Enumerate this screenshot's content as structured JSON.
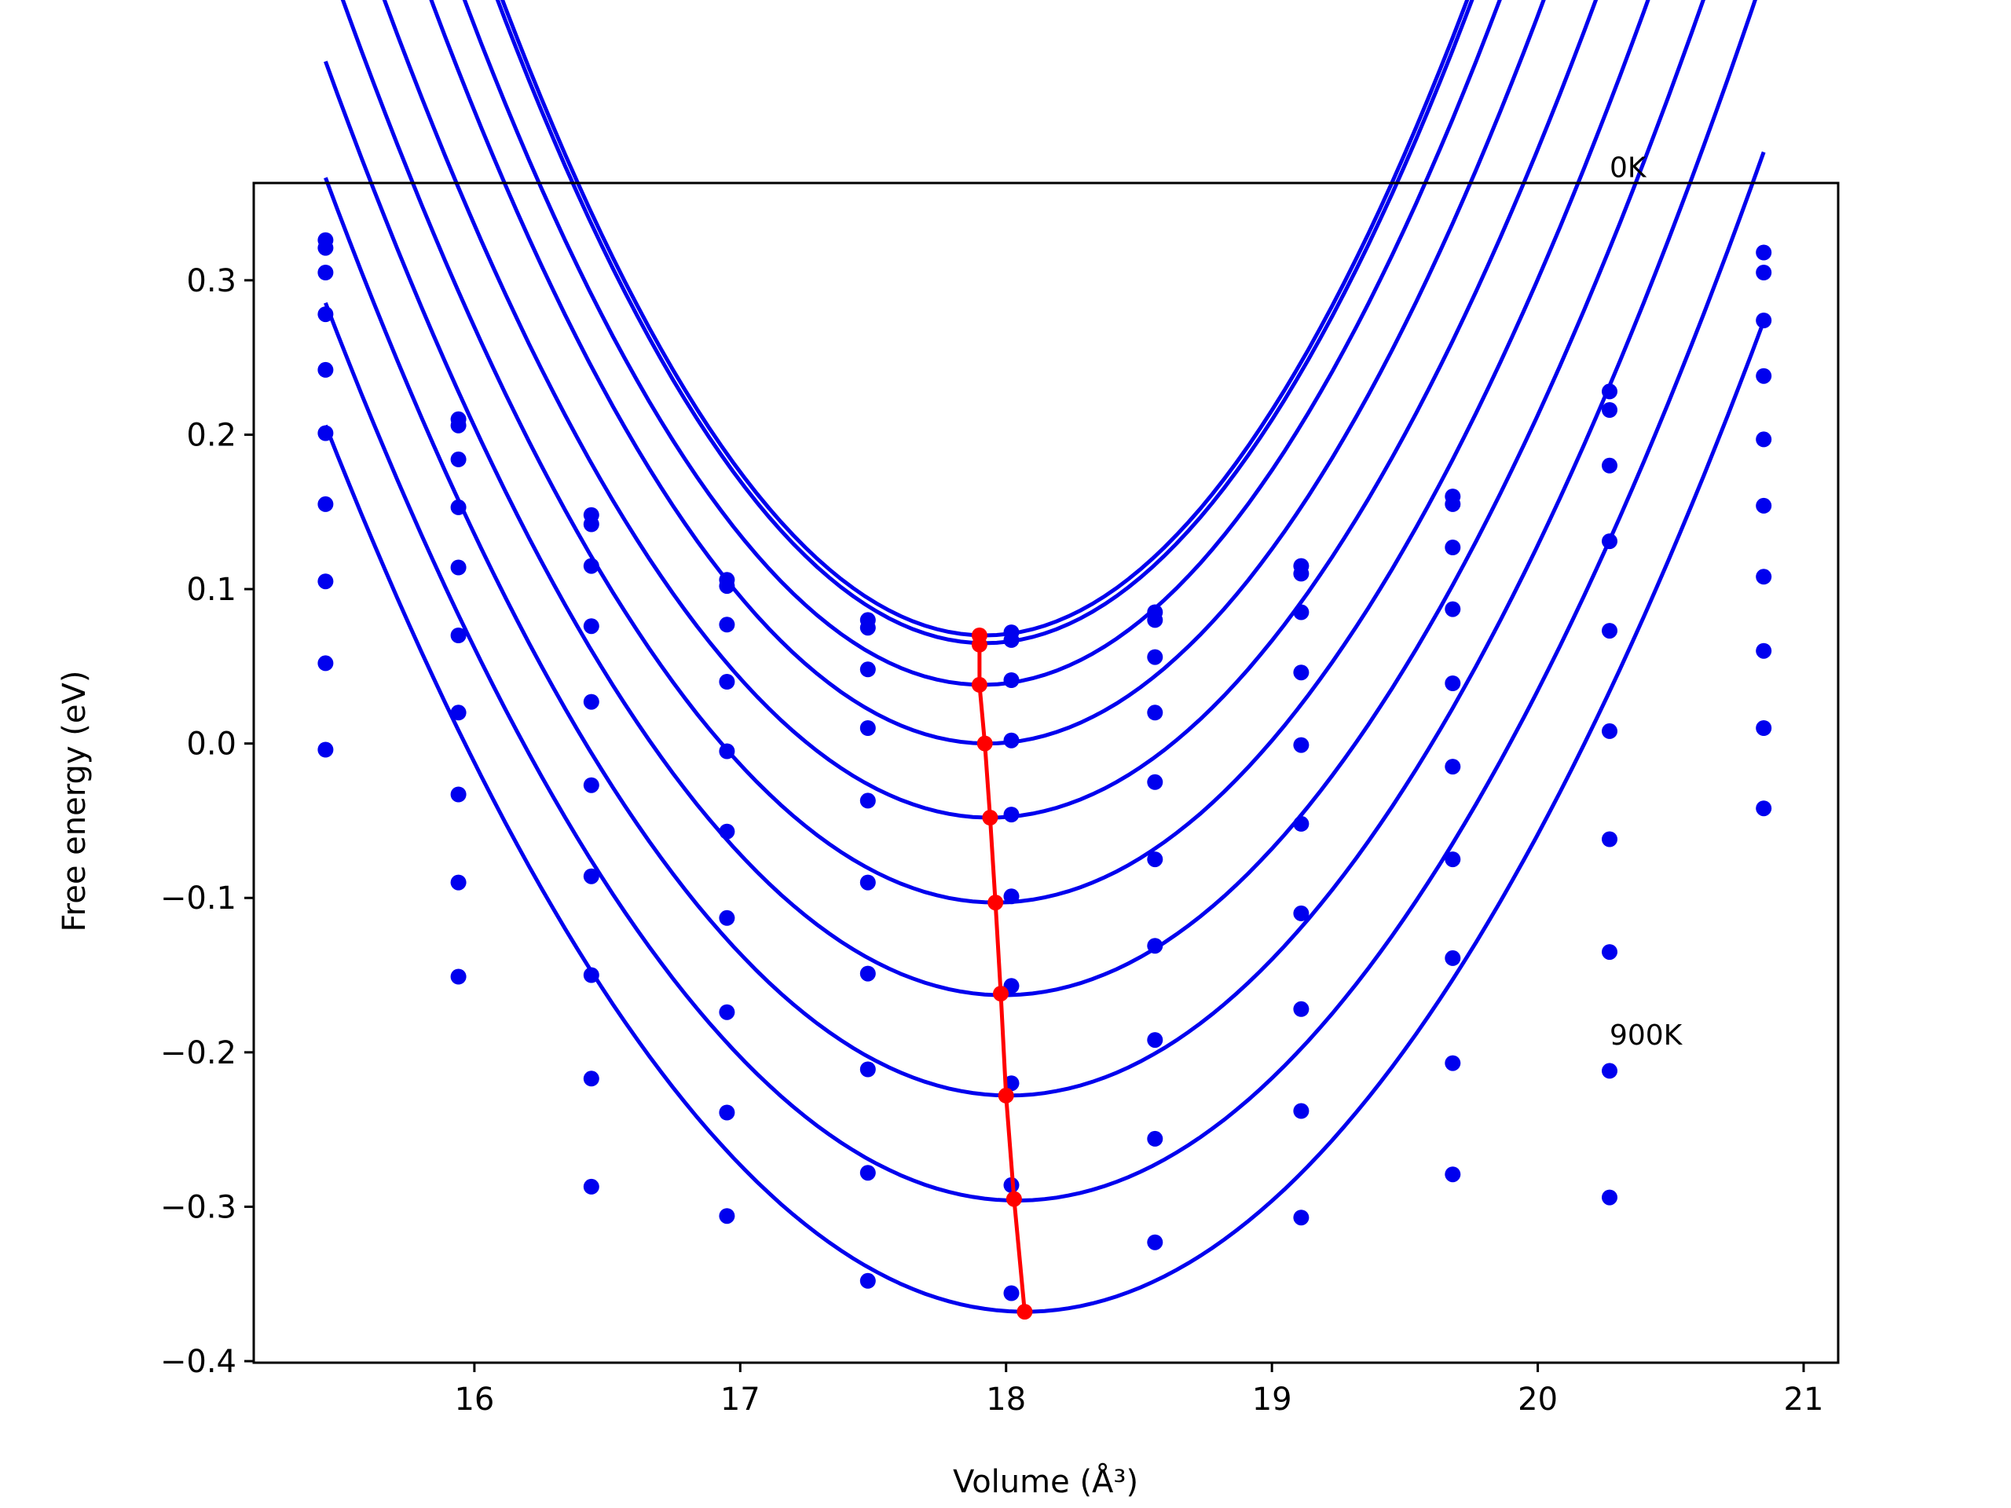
{
  "chart_data": {
    "type": "scatter",
    "title": "",
    "xlabel": "Volume (Å³)",
    "ylabel": "Free energy (eV)",
    "xlim": [
      15.17,
      21.13
    ],
    "ylim": [
      -0.401,
      0.363
    ],
    "xticks": [
      16,
      17,
      18,
      19,
      20,
      21
    ],
    "yticks": [
      -0.4,
      -0.3,
      -0.2,
      -0.1,
      0.0,
      0.1,
      0.2,
      0.3
    ],
    "xtick_labels": [
      "16",
      "17",
      "18",
      "19",
      "20",
      "21"
    ],
    "ytick_labels": [
      "−0.4",
      "−0.3",
      "−0.2",
      "−0.1",
      "0.0",
      "0.1",
      "0.2",
      "0.3"
    ],
    "grid": false,
    "legend": "none",
    "colors": {
      "points": "#0000ee",
      "fits": "#0000ee",
      "minima": "#ff0000",
      "frame": "#000000"
    },
    "annotations": [
      {
        "text": "0K",
        "x": 20.27,
        "y": 0.374
      },
      {
        "text": "900K",
        "x": 20.27,
        "y": -0.188
      }
    ],
    "x": [
      15.44,
      15.94,
      16.44,
      16.95,
      17.48,
      18.02,
      18.56,
      19.11,
      19.68,
      20.27,
      20.85
    ],
    "series": [
      {
        "values": [
          0.326,
          0.21,
          0.148,
          0.106,
          0.08,
          0.072,
          0.085,
          0.115,
          0.16,
          0.228,
          0.318
        ],
        "fit": {
          "a": 0.125,
          "v0": 17.92,
          "e0": 0.07
        },
        "min": [
          17.9,
          0.07
        ]
      },
      {
        "values": [
          0.321,
          0.206,
          0.142,
          0.102,
          0.075,
          0.067,
          0.08,
          0.11,
          0.155,
          0.216,
          0.305
        ],
        "fit": {
          "a": 0.124,
          "v0": 17.92,
          "e0": 0.065
        },
        "min": [
          17.9,
          0.064
        ]
      },
      {
        "values": [
          0.305,
          0.184,
          0.115,
          0.077,
          0.048,
          0.041,
          0.056,
          0.085,
          0.127,
          0.18,
          0.274
        ],
        "fit": {
          "a": 0.117,
          "v0": 17.91,
          "e0": 0.038
        },
        "min": [
          17.9,
          0.038
        ]
      },
      {
        "values": [
          0.278,
          0.153,
          0.076,
          0.04,
          0.01,
          0.002,
          0.02,
          0.046,
          0.087,
          0.131,
          0.238
        ],
        "fit": {
          "a": 0.11,
          "v0": 17.93,
          "e0": 0.0
        },
        "min": [
          17.92,
          0.0
        ]
      },
      {
        "values": [
          0.242,
          0.114,
          0.027,
          -0.005,
          -0.037,
          -0.046,
          -0.025,
          -0.001,
          0.039,
          0.073,
          0.197
        ],
        "fit": {
          "a": 0.102,
          "v0": 17.94,
          "e0": -0.048
        },
        "min": [
          17.94,
          -0.048
        ]
      },
      {
        "values": [
          0.201,
          0.07,
          -0.027,
          -0.057,
          -0.09,
          -0.099,
          -0.075,
          -0.052,
          -0.015,
          0.008,
          0.154
        ],
        "fit": {
          "a": 0.097,
          "v0": 17.96,
          "e0": -0.103
        },
        "min": [
          17.96,
          -0.103
        ]
      },
      {
        "values": [
          0.155,
          0.02,
          -0.086,
          -0.113,
          -0.149,
          -0.157,
          -0.131,
          -0.11,
          -0.075,
          -0.062,
          0.108
        ],
        "fit": {
          "a": 0.093,
          "v0": 17.99,
          "e0": -0.163
        },
        "min": [
          17.98,
          -0.162
        ]
      },
      {
        "values": [
          0.105,
          -0.033,
          -0.15,
          -0.174,
          -0.211,
          -0.22,
          -0.192,
          -0.172,
          -0.139,
          -0.135,
          0.06
        ],
        "fit": {
          "a": 0.09,
          "v0": 18.01,
          "e0": -0.228
        },
        "min": [
          18.0,
          -0.228
        ]
      },
      {
        "values": [
          0.052,
          -0.09,
          -0.217,
          -0.239,
          -0.278,
          -0.286,
          -0.256,
          -0.238,
          -0.207,
          -0.212,
          0.01
        ],
        "fit": {
          "a": 0.086,
          "v0": 18.04,
          "e0": -0.296
        },
        "min": [
          18.03,
          -0.295
        ]
      },
      {
        "values": [
          -0.004,
          -0.151,
          -0.287,
          -0.306,
          -0.348,
          -0.356,
          -0.323,
          -0.307,
          -0.279,
          -0.294,
          -0.042
        ],
        "fit": {
          "a": 0.083,
          "v0": 18.07,
          "e0": -0.368
        },
        "min": [
          18.07,
          -0.368
        ]
      }
    ]
  }
}
